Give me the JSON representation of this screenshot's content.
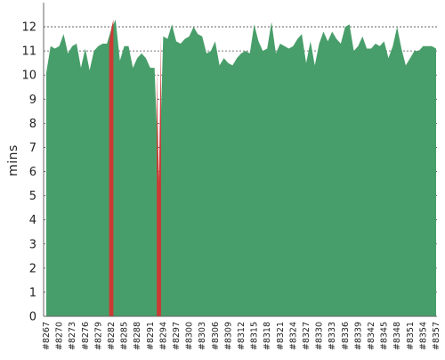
{
  "chart_data": {
    "type": "area",
    "title": "",
    "xlabel": "",
    "ylabel": "mins",
    "ylim": [
      0,
      13
    ],
    "y_ticks": [
      0,
      1,
      2,
      3,
      4,
      5,
      6,
      7,
      8,
      9,
      10,
      11,
      12
    ],
    "grid": true,
    "x_tick_labels": [
      "#8267",
      "#8270",
      "#8273",
      "#8276",
      "#8279",
      "#8282",
      "#8285",
      "#8288",
      "#8291",
      "#8294",
      "#8297",
      "#8300",
      "#8303",
      "#8306",
      "#8309",
      "#8312",
      "#8315",
      "#8318",
      "#8321",
      "#8324",
      "#8327",
      "#8330",
      "#8333",
      "#8336",
      "#8339",
      "#8342",
      "#8345",
      "#8348",
      "#8351",
      "#8354",
      "#8357"
    ],
    "builds": {
      "first": 8267,
      "last": 8357,
      "values": [
        10.1,
        11.2,
        11.1,
        11.2,
        11.7,
        10.9,
        11.2,
        11.3,
        10.3,
        11.1,
        10.2,
        11.0,
        11.2,
        11.3,
        11.3,
        11.9,
        12.3,
        10.6,
        11.2,
        11.2,
        10.3,
        10.7,
        10.9,
        10.7,
        10.3,
        10.3,
        5.5,
        11.6,
        11.5,
        12.1,
        11.4,
        11.3,
        11.5,
        11.6,
        12.0,
        11.7,
        11.6,
        10.9,
        11.0,
        11.4,
        10.4,
        10.7,
        10.5,
        10.4,
        10.7,
        10.9,
        11.0,
        10.9,
        12.1,
        11.4,
        11.0,
        11.1,
        12.2,
        10.9,
        11.3,
        11.2,
        11.1,
        11.2,
        11.5,
        11.7,
        10.5,
        11.4,
        10.4,
        11.3,
        11.8,
        11.4,
        11.8,
        11.5,
        11.3,
        12.0,
        12.1,
        11.0,
        11.2,
        11.6,
        11.1,
        11.1,
        11.3,
        11.2,
        11.4,
        10.7,
        11.2,
        12.0,
        11.1,
        10.4,
        10.7,
        11.0,
        11.0,
        11.2,
        11.2,
        11.2,
        11.1
      ],
      "failed": [
        8282,
        8293
      ]
    },
    "colors": {
      "success": "#489e6a",
      "failed": "#cc3a34",
      "grid": "#4a4a4a",
      "axis": "#666666"
    }
  }
}
